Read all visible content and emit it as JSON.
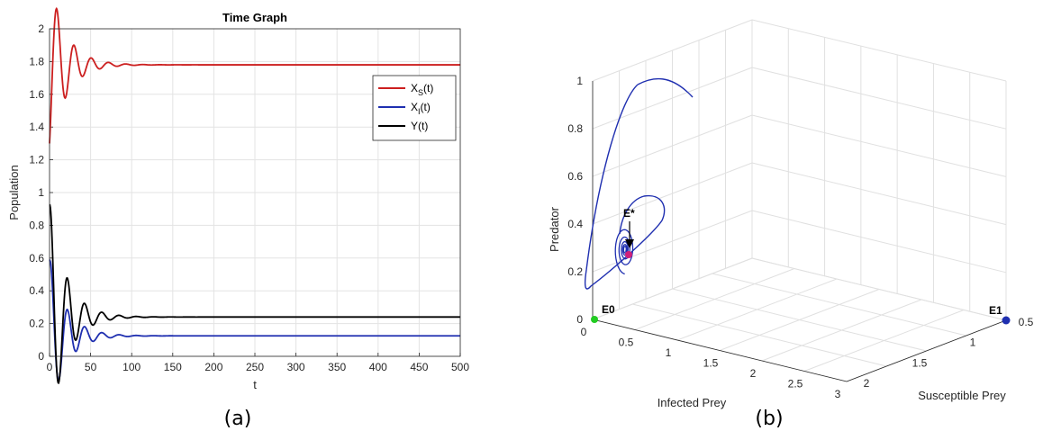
{
  "chart_data": [
    {
      "type": "line",
      "title": "Time Graph",
      "xlabel": "t",
      "ylabel": "Population",
      "xlim": [
        0,
        500
      ],
      "ylim": [
        0,
        2
      ],
      "xticks": [
        "0",
        "50",
        "100",
        "150",
        "200",
        "250",
        "300",
        "350",
        "400",
        "450",
        "500"
      ],
      "yticks": [
        "0",
        "0.2",
        "0.4",
        "0.6",
        "0.8",
        "1",
        "1.2",
        "1.4",
        "1.6",
        "1.8",
        "2"
      ],
      "grid": true,
      "legend_position": "right",
      "legend": [
        {
          "base": "X",
          "sub": "S",
          "suffix": "(t)"
        },
        {
          "base": "X",
          "sub": "I",
          "suffix": "(t)"
        },
        {
          "base": "Y(t)",
          "sub": "",
          "suffix": ""
        }
      ],
      "series": [
        {
          "name": "XS(t)",
          "color": "#cc1f1f",
          "start": 1.3,
          "equilibrium": 1.78,
          "amplitude": 0.19,
          "period": 21,
          "decay": 20
        },
        {
          "name": "XI(t)",
          "color": "#1f2fb0",
          "start": 0.58,
          "equilibrium": 0.125,
          "amplitude": 0.12,
          "period": 21,
          "decay": 20
        },
        {
          "name": "Y(t)",
          "color": "#000000",
          "start": 0.92,
          "equilibrium": 0.24,
          "amplitude": 0.15,
          "period": 21,
          "decay": 20
        }
      ],
      "caption": "(a)"
    },
    {
      "type": "line",
      "subtype": "3d-phase-portrait",
      "zlabel": "Predator",
      "xlabel": "Infected Prey",
      "ylabel": "Susceptible Prey",
      "zticks": [
        "0",
        "0.2",
        "0.4",
        "0.6",
        "0.8",
        "1"
      ],
      "xticks": [
        "0",
        "0.5",
        "1",
        "1.5",
        "2",
        "2.5",
        "3"
      ],
      "yticks": [
        "0.5",
        "1",
        "1.5",
        "2"
      ],
      "grid": true,
      "trajectory_color": "#1f2fb0",
      "points": [
        {
          "label": "E0",
          "color": "#22cc22"
        },
        {
          "label": "E1",
          "color": "#1f2fb0"
        },
        {
          "label": "E*",
          "color": "#d0207a"
        }
      ],
      "caption": "(b)"
    }
  ]
}
